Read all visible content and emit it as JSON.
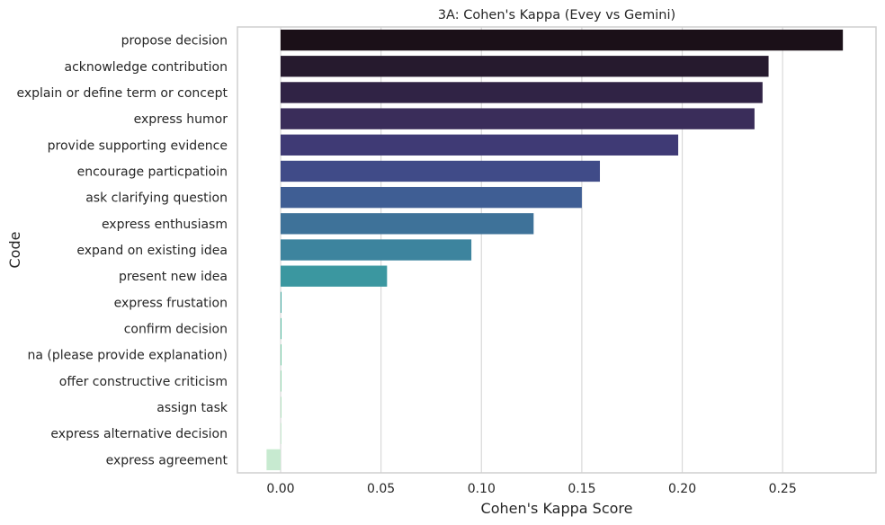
{
  "chart_data": {
    "type": "bar",
    "orientation": "horizontal",
    "title": "3A: Cohen's Kappa (Evey vs Gemini)",
    "xlabel": "Cohen's Kappa Score",
    "ylabel": "Code",
    "xlim": [
      -0.0215,
      0.2965
    ],
    "xticks": [
      0.0,
      0.05,
      0.1,
      0.15,
      0.2,
      0.25
    ],
    "xtick_labels": [
      "0.00",
      "0.05",
      "0.10",
      "0.15",
      "0.20",
      "0.25"
    ],
    "grid": "vertical",
    "categories": [
      "propose decision",
      "acknowledge contribution",
      "explain or define term or concept",
      "express humor",
      "provide supporting evidence",
      "encourage particpatioin",
      "ask clarifying question",
      "express enthusiasm",
      "expand on existing idea",
      "present new idea",
      "express frustation",
      "confirm decision",
      "na (please provide explanation)",
      "offer constructive criticism",
      "assign task",
      "express alternative decision",
      "express agreement"
    ],
    "values": [
      0.28,
      0.243,
      0.24,
      0.236,
      0.198,
      0.159,
      0.15,
      0.126,
      0.095,
      0.053,
      0.0,
      0.0,
      0.0,
      0.0,
      0.0,
      0.0,
      -0.007
    ],
    "colors": [
      "#1b1018",
      "#261a2e",
      "#302345",
      "#3a2d5a",
      "#3f3a75",
      "#404b88",
      "#3f5e94",
      "#3e7299",
      "#3d849e",
      "#3b97a0",
      "#42aaa1",
      "#56bca2",
      "#74cba6",
      "#95d7b1",
      "#b2e2c1",
      "#c7ead0",
      "#c7ead0"
    ]
  }
}
